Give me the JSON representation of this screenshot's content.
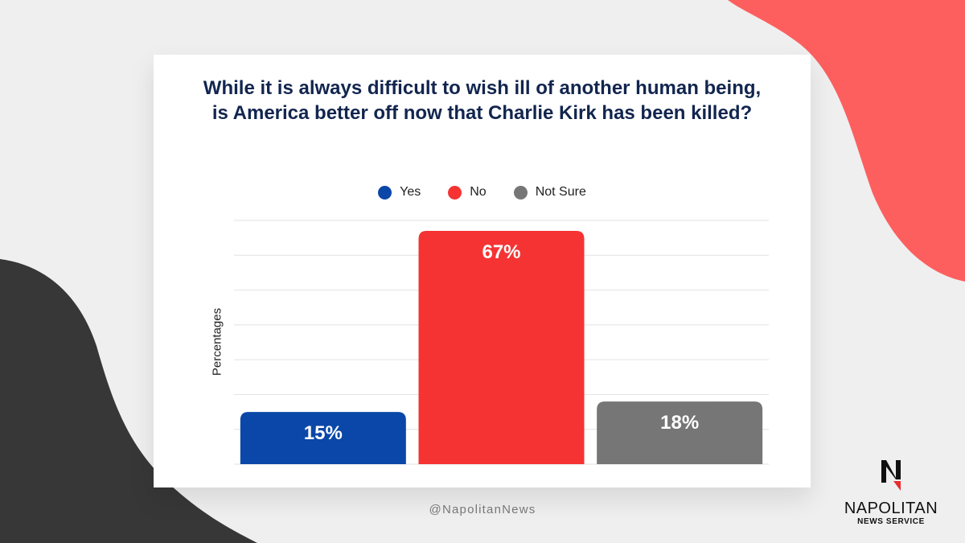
{
  "chart_data": {
    "type": "bar",
    "title": "While it is always difficult to wish ill of another human being, is America better off now that Charlie Kirk has been killed?",
    "categories": [
      "Yes",
      "No",
      "Not Sure"
    ],
    "values": [
      15,
      67,
      18
    ],
    "data_labels": [
      "15%",
      "67%",
      "18%"
    ],
    "colors": [
      "#0a47a8",
      "#f53333",
      "#767676"
    ],
    "ylabel": "Percentages",
    "xlabel": "",
    "ylim": [
      0,
      70
    ],
    "grid": true,
    "legend": "top-center"
  },
  "legend": {
    "items": [
      {
        "label": "Yes",
        "color": "#0a47a8"
      },
      {
        "label": "No",
        "color": "#f53333"
      },
      {
        "label": "Not Sure",
        "color": "#767676"
      }
    ]
  },
  "footer": {
    "handle": "@NapolitanNews"
  },
  "logo": {
    "mark": "N",
    "name": "NAPOLITAN",
    "subtitle": "NEWS SERVICE"
  },
  "theme": {
    "accent_red": "#fd5f5f",
    "dark": "#373737"
  }
}
